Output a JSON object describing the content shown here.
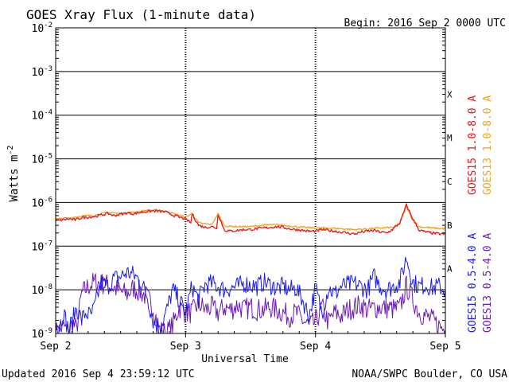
{
  "title": "GOES Xray Flux (1-minute data)",
  "begin_label": "Begin:  2016 Sep 2 0000 UTC",
  "footer_left": "Updated 2016 Sep  4 23:59:12 UTC",
  "footer_right": "NOAA/SWPC Boulder, CO USA",
  "colors": {
    "goes15_long": "#e8141a",
    "goes13_long": "#f2a21c",
    "goes15_short": "#1a1aee",
    "goes13_short": "#6a1cb0",
    "axes": "#000000"
  },
  "chart_data": {
    "type": "line",
    "title": "GOES Xray Flux (1-minute data)",
    "xlabel": "Universal Time",
    "ylabel": "Watts m",
    "ylabel_superscript": "-2",
    "yscale": "log",
    "ylim": [
      1e-09,
      0.01
    ],
    "y_ticks": [
      {
        "mantissa": "10",
        "exp": "-9",
        "value": 1e-09
      },
      {
        "mantissa": "10",
        "exp": "-8",
        "value": 1e-08
      },
      {
        "mantissa": "10",
        "exp": "-7",
        "value": 1e-07
      },
      {
        "mantissa": "10",
        "exp": "-6",
        "value": 1e-06
      },
      {
        "mantissa": "10",
        "exp": "-5",
        "value": 1e-05
      },
      {
        "mantissa": "10",
        "exp": "-4",
        "value": 0.0001
      },
      {
        "mantissa": "10",
        "exp": "-3",
        "value": 0.001
      },
      {
        "mantissa": "10",
        "exp": "-2",
        "value": 0.01
      }
    ],
    "x_range_days": [
      0,
      3
    ],
    "x_ticks": [
      {
        "label": "Sep 2",
        "day": 0
      },
      {
        "label": "Sep 3",
        "day": 1
      },
      {
        "label": "Sep 4",
        "day": 2
      },
      {
        "label": "Sep 5",
        "day": 3
      }
    ],
    "flare_classes": [
      {
        "label": "A",
        "value": 1e-08
      },
      {
        "label": "B",
        "value": 1e-07
      },
      {
        "label": "C",
        "value": 1e-06
      },
      {
        "label": "M",
        "value": 1e-05
      },
      {
        "label": "X",
        "value": 0.0001
      }
    ],
    "grid": "horizontal decade lines, dotted day separators",
    "legend_right": [
      {
        "label": "GOES15 1.0-8.0 A",
        "color": "#e8141a"
      },
      {
        "label": "GOES13 1.0-8.0 A",
        "color": "#f2a21c"
      },
      {
        "label": "GOES15 0.5-4.0 A",
        "color": "#1a1aee"
      },
      {
        "label": "GOES13 0.5-4.0 A",
        "color": "#6a1cb0"
      }
    ],
    "series": [
      {
        "name": "GOES15 1.0-8.0 A",
        "color": "#e8141a",
        "day": [
          0,
          0.05,
          0.1,
          0.15,
          0.2,
          0.25,
          0.3,
          0.35,
          0.4,
          0.45,
          0.5,
          0.55,
          0.6,
          0.65,
          0.7,
          0.75,
          0.8,
          0.85,
          0.9,
          0.95,
          1.0,
          1.04,
          1.05,
          1.1,
          1.15,
          1.2,
          1.24,
          1.25,
          1.3,
          1.35,
          1.4,
          1.45,
          1.5,
          1.55,
          1.6,
          1.65,
          1.7,
          1.75,
          1.8,
          1.85,
          1.9,
          1.95,
          2.0,
          2.05,
          2.1,
          2.15,
          2.2,
          2.25,
          2.3,
          2.35,
          2.4,
          2.45,
          2.5,
          2.55,
          2.6,
          2.65,
          2.7,
          2.75,
          2.8,
          2.85,
          2.9,
          2.95,
          3.0
        ],
        "flux": [
          3.8e-07,
          4e-07,
          4.2e-07,
          4e-07,
          4.5e-07,
          4.6e-07,
          4.8e-07,
          5.2e-07,
          5.6e-07,
          5e-07,
          5.4e-07,
          5.8e-07,
          5.5e-07,
          5.9e-07,
          6.2e-07,
          6.4e-07,
          6.3e-07,
          6e-07,
          5.2e-07,
          4.6e-07,
          4.2e-07,
          3.4e-07,
          5.5e-07,
          3e-07,
          2.7e-07,
          2.8e-07,
          2.6e-07,
          5.4e-07,
          2.3e-07,
          2.2e-07,
          2.3e-07,
          2.4e-07,
          2.4e-07,
          2.5e-07,
          2.6e-07,
          2.7e-07,
          2.8e-07,
          2.7e-07,
          2.5e-07,
          2.4e-07,
          2.3e-07,
          2.2e-07,
          2.2e-07,
          2.4e-07,
          2.3e-07,
          2.2e-07,
          2.1e-07,
          2e-07,
          1.9e-07,
          2.1e-07,
          2.2e-07,
          2.3e-07,
          2.1e-07,
          2e-07,
          2.5e-07,
          3.4e-07,
          8.8e-07,
          4.2e-07,
          2.3e-07,
          2.1e-07,
          2e-07,
          1.9e-07,
          1.9e-07
        ]
      },
      {
        "name": "GOES13 1.0-8.0 A",
        "color": "#f2a21c",
        "day": [
          0,
          0.1,
          0.2,
          0.3,
          0.4,
          0.5,
          0.6,
          0.7,
          0.8,
          0.9,
          1.0,
          1.05,
          1.1,
          1.2,
          1.25,
          1.3,
          1.4,
          1.5,
          1.6,
          1.7,
          1.8,
          1.9,
          2.0,
          2.1,
          2.2,
          2.3,
          2.4,
          2.5,
          2.6,
          2.65,
          2.7,
          2.75,
          2.8,
          2.9,
          3.0
        ],
        "flux": [
          4.2e-07,
          4.4e-07,
          4.9e-07,
          5.1e-07,
          5.9e-07,
          5.6e-07,
          6e-07,
          6.6e-07,
          6.7e-07,
          5.7e-07,
          4.6e-07,
          5.6e-07,
          3.4e-07,
          3.1e-07,
          5.5e-07,
          2.9e-07,
          2.8e-07,
          2.8e-07,
          3e-07,
          3.1e-07,
          2.9e-07,
          2.7e-07,
          2.6e-07,
          2.6e-07,
          2.5e-07,
          2.4e-07,
          2.5e-07,
          2.6e-07,
          2.7e-07,
          3.4e-07,
          8e-07,
          3.9e-07,
          2.8e-07,
          2.6e-07,
          2.5e-07
        ]
      },
      {
        "name": "GOES15 0.5-4.0 A",
        "color": "#1a1aee",
        "day": [
          0,
          0.03,
          0.06,
          0.1,
          0.13,
          0.16,
          0.2,
          0.23,
          0.27,
          0.3,
          0.35,
          0.4,
          0.45,
          0.5,
          0.55,
          0.6,
          0.65,
          0.7,
          0.75,
          0.8,
          0.85,
          0.9,
          0.95,
          1.0,
          1.05,
          1.1,
          1.15,
          1.2,
          1.25,
          1.3,
          1.35,
          1.4,
          1.45,
          1.5,
          1.55,
          1.6,
          1.65,
          1.7,
          1.75,
          1.8,
          1.85,
          1.9,
          1.95,
          2.0,
          2.05,
          2.1,
          2.15,
          2.2,
          2.25,
          2.3,
          2.35,
          2.4,
          2.45,
          2.5,
          2.55,
          2.6,
          2.65,
          2.7,
          2.75,
          2.8,
          2.85,
          2.9,
          2.95,
          3.0
        ],
        "flux": [
          2e-09,
          1.5e-09,
          3e-09,
          1.2e-09,
          2e-09,
          4e-09,
          2e-09,
          3e-09,
          2.5e-09,
          4e-09,
          1.5e-08,
          1.2e-08,
          1.8e-08,
          2e-08,
          2.5e-08,
          2.2e-08,
          1.6e-08,
          8e-09,
          2e-09,
          1.2e-09,
          3e-09,
          1e-08,
          6e-09,
          3e-09,
          1.2e-08,
          6e-09,
          1.3e-08,
          1.4e-08,
          1.2e-08,
          1e-08,
          1.1e-08,
          1.2e-08,
          1.4e-08,
          1.3e-08,
          1.2e-08,
          1.5e-08,
          1.3e-08,
          1.1e-08,
          1.2e-08,
          1e-08,
          1.1e-08,
          6e-09,
          2.5e-09,
          1.1e-08,
          3e-09,
          1.1e-08,
          8e-09,
          1.2e-08,
          1.3e-08,
          1.4e-08,
          1.2e-08,
          1e-08,
          2e-08,
          1.2e-08,
          1e-08,
          1.2e-08,
          1.5e-08,
          5.5e-08,
          1.5e-08,
          1.2e-08,
          1.3e-08,
          1.1e-08,
          1.2e-08,
          1e-08
        ]
      },
      {
        "name": "GOES13 0.5-4.0 A",
        "color": "#6a1cb0",
        "day": [
          0,
          0.03,
          0.06,
          0.1,
          0.13,
          0.16,
          0.2,
          0.25,
          0.3,
          0.35,
          0.4,
          0.45,
          0.5,
          0.55,
          0.6,
          0.65,
          0.7,
          0.75,
          0.8,
          0.85,
          0.9,
          0.95,
          1.0,
          1.05,
          1.1,
          1.15,
          1.2,
          1.25,
          1.3,
          1.35,
          1.4,
          1.45,
          1.5,
          1.55,
          1.6,
          1.65,
          1.7,
          1.75,
          1.8,
          1.85,
          1.9,
          1.95,
          2.0,
          2.05,
          2.1,
          2.15,
          2.2,
          2.25,
          2.3,
          2.35,
          2.4,
          2.45,
          2.5,
          2.55,
          2.6,
          2.65,
          2.7,
          2.75,
          2.8,
          2.85,
          2.9,
          2.95,
          3.0
        ],
        "flux": [
          1e-09,
          1.2e-09,
          1.5e-09,
          1e-09,
          1.8e-09,
          1.2e-09,
          8e-09,
          1.2e-08,
          1.5e-08,
          1.4e-08,
          1.3e-08,
          1.1e-08,
          9e-09,
          8e-09,
          1.1e-08,
          9e-09,
          7e-09,
          4e-09,
          1.2e-09,
          1e-09,
          1.5e-09,
          4e-09,
          3e-09,
          3e-09,
          5e-09,
          3.5e-09,
          4e-09,
          3e-09,
          4e-09,
          3.5e-09,
          4.5e-09,
          3.5e-09,
          4e-09,
          3.5e-09,
          3.5e-09,
          4e-09,
          3.5e-09,
          3e-09,
          2.5e-09,
          3e-09,
          2e-09,
          1.5e-09,
          1.8e-09,
          4e-09,
          1.8e-09,
          3e-09,
          2.5e-09,
          3.5e-09,
          4e-09,
          4.5e-09,
          3.5e-09,
          3.8e-09,
          4e-09,
          3.8e-09,
          3.6e-09,
          3.8e-09,
          1.2e-08,
          6e-09,
          3e-09,
          2.5e-09,
          2e-09,
          1.5e-09,
          1.2e-09
        ]
      }
    ]
  }
}
